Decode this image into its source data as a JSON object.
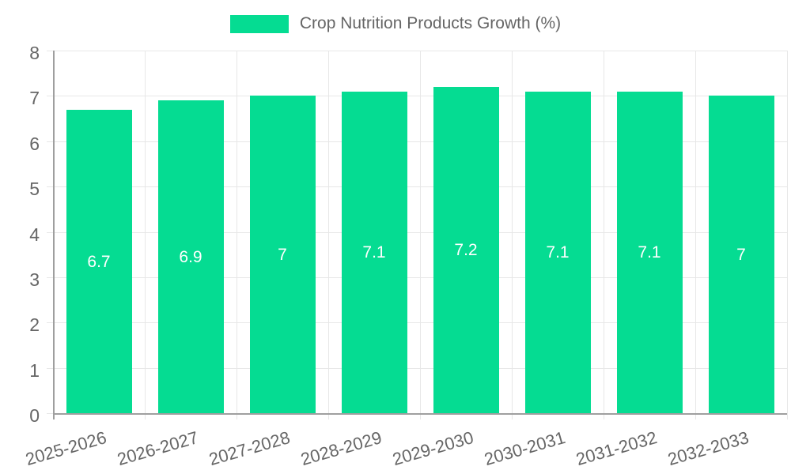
{
  "legend": {
    "label": "Crop Nutrition Products Growth (%)",
    "swatch_color": "#05dc92"
  },
  "chart_data": {
    "type": "bar",
    "title": "Crop Nutrition Products Growth (%)",
    "categories": [
      "2025-2026",
      "2026-2027",
      "2027-2028",
      "2028-2029",
      "2029-2030",
      "2030-2031",
      "2031-2032",
      "2032-2033"
    ],
    "values": [
      6.7,
      6.9,
      7,
      7.1,
      7.2,
      7.1,
      7.1,
      7
    ],
    "bar_labels": [
      "6.7",
      "6.9",
      "7",
      "7.1",
      "7.2",
      "7.1",
      "7.1",
      "7"
    ],
    "ytick_labels": [
      "0",
      "1",
      "2",
      "3",
      "4",
      "5",
      "6",
      "7",
      "8"
    ],
    "xlabel": "",
    "ylabel": "",
    "ylim": [
      0,
      8
    ],
    "ytick_step": 1,
    "grid": true,
    "legend_position": "top",
    "bar_color": "#05dc92",
    "value_label_color": "#ffffff",
    "grid_color": "#e7e7e7",
    "axis_color": "#9f9f9f",
    "tick_text_color": "#666666"
  }
}
